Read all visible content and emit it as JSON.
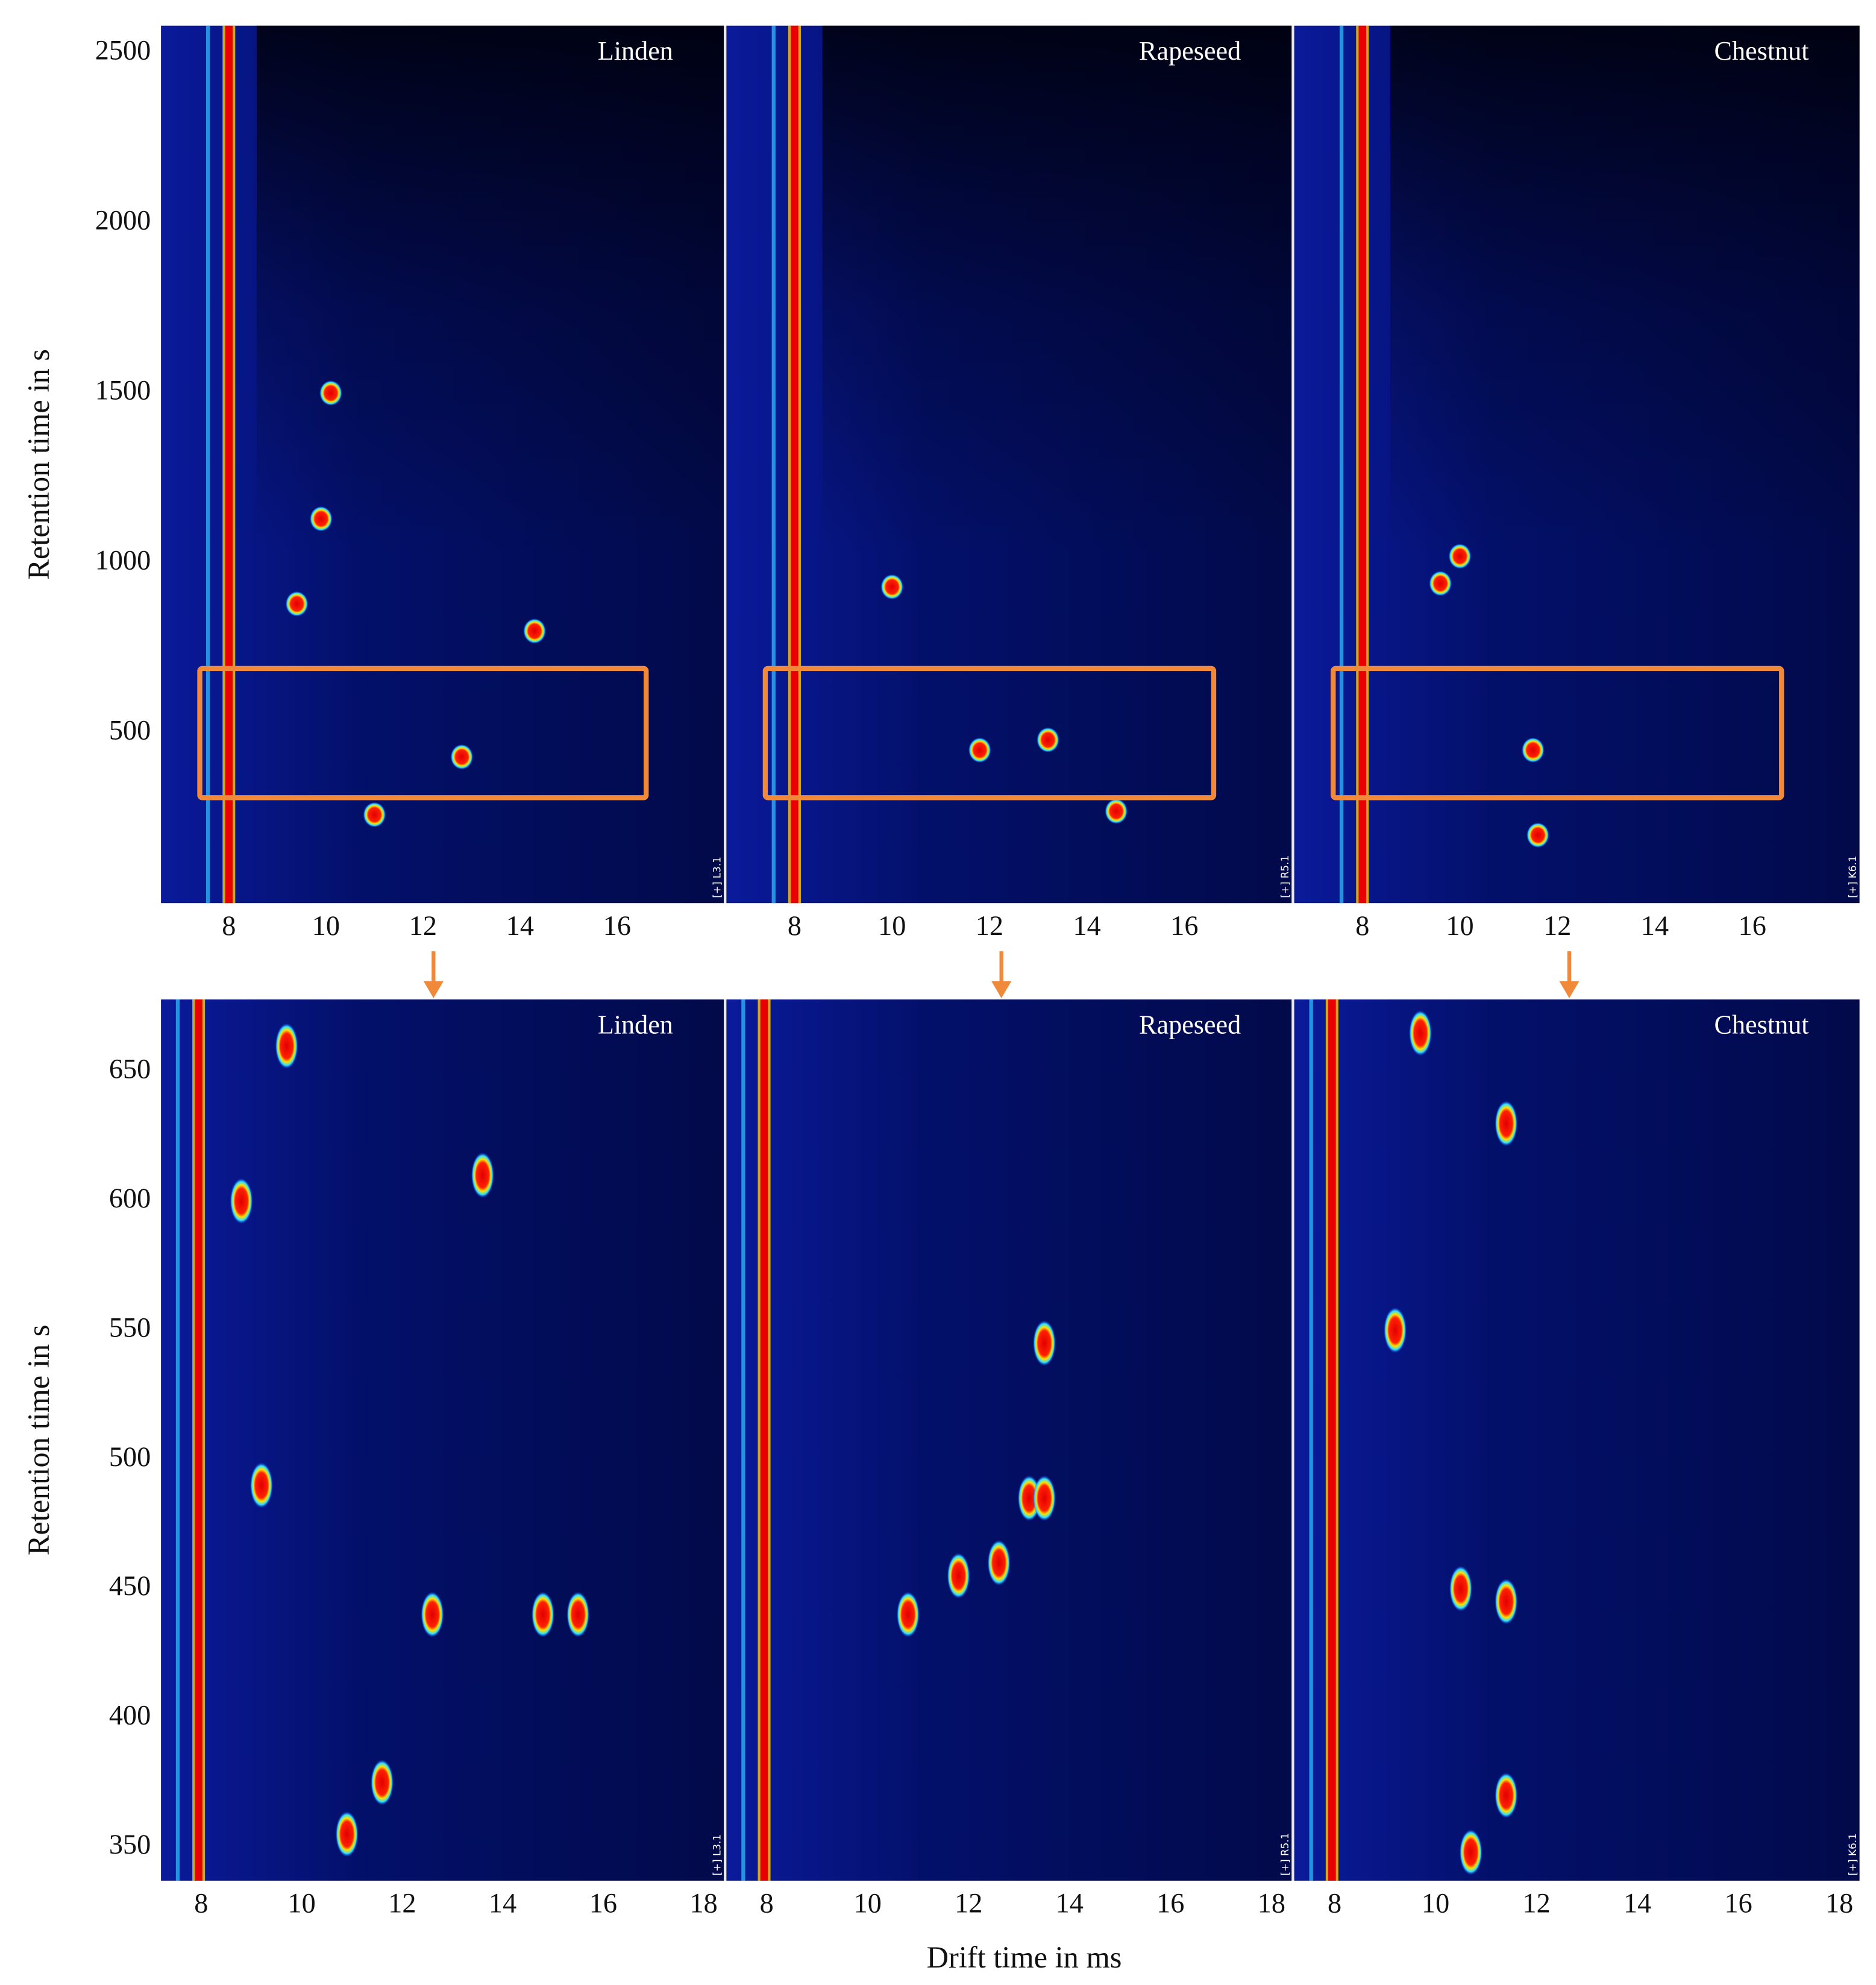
{
  "chart_data": [
    {
      "type": "heatmap",
      "panels": [
        "Linden",
        "Rapeseed",
        "Chestnut"
      ],
      "panel_ids": [
        "[+] L3.1",
        "[+] R5.1",
        "[+] K6.1"
      ],
      "ylabel": "Retention time in s",
      "xlim": [
        6.6,
        18.2
      ],
      "xticks": [
        8,
        10,
        12,
        14,
        16
      ],
      "ylim": [
        0,
        2580
      ],
      "yticks": [
        500,
        1000,
        1500,
        2000,
        2500
      ],
      "reactant_ion_peak": 8.0,
      "highlight": {
        "x": [
          7.4,
          16.6
        ],
        "y": [
          310,
          690
        ],
        "color": "#f0893a"
      },
      "peaks": [
        {
          "x": [
            10.1,
            9.9,
            9.4,
            12.8,
            11.0,
            14.3
          ],
          "y": [
            1500,
            1130,
            880,
            430,
            260,
            800
          ]
        },
        {
          "x": [
            10.0,
            11.8,
            13.2,
            14.6
          ],
          "y": [
            930,
            450,
            480,
            270
          ]
        },
        {
          "x": [
            10.0,
            9.6,
            11.5,
            11.6
          ],
          "y": [
            1020,
            940,
            450,
            200
          ]
        }
      ]
    },
    {
      "type": "heatmap",
      "panels": [
        "Linden",
        "Rapeseed",
        "Chestnut"
      ],
      "panel_ids": [
        "[+] L3.1",
        "[+] R5.1",
        "[+] K6.1"
      ],
      "ylabel": "Retention time in s",
      "xlabel": "Drift time in ms",
      "xlim": [
        7.2,
        18.4
      ],
      "xticks": [
        8,
        10,
        12,
        14,
        16,
        18
      ],
      "ylim": [
        337,
        678
      ],
      "yticks": [
        350,
        400,
        450,
        500,
        550,
        600,
        650
      ],
      "reactant_ion_peak": 7.95,
      "peaks": [
        {
          "x": [
            9.2,
            12.6,
            10.9,
            11.6,
            8.8,
            9.7,
            13.6,
            14.8,
            15.5
          ],
          "y": [
            490,
            440,
            355,
            375,
            600,
            660,
            610,
            440,
            440
          ]
        },
        {
          "x": [
            11.8,
            10.8,
            13.2,
            13.5,
            12.6,
            13.5
          ],
          "y": [
            455,
            440,
            485,
            485,
            460,
            545
          ]
        },
        {
          "x": [
            10.5,
            11.4,
            11.4,
            9.2,
            10.7,
            11.4,
            9.7
          ],
          "y": [
            450,
            445,
            630,
            550,
            348,
            370,
            665
          ]
        }
      ]
    }
  ]
}
